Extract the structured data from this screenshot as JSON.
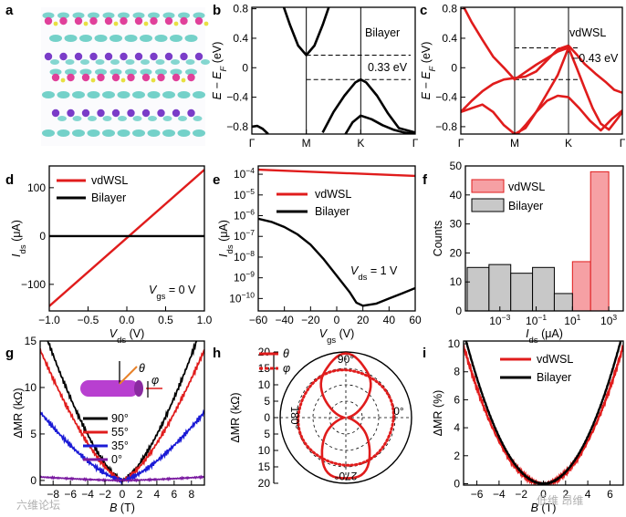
{
  "figure": {
    "panel_labels": [
      "a",
      "b",
      "c",
      "d",
      "e",
      "f",
      "g",
      "h",
      "i"
    ],
    "watermarks": [
      "六维论坛",
      "低维 昂维"
    ]
  },
  "chart_data": [
    {
      "panel": "a",
      "type": "other",
      "description_shown": "atomic structure with charge-density lobes",
      "colors": {
        "lobe": "#5cc9c0",
        "atom_pink": "#e0409a",
        "atom_purple": "#7a3cc8",
        "atom_yellow": "#e8e040"
      }
    },
    {
      "panel": "b",
      "type": "line",
      "ylabel_main": "E − E",
      "ylabel_sub": "F",
      "ylabel_unit": " (eV)",
      "ylim": [
        -0.9,
        0.82
      ],
      "y_ticks": [
        -0.8,
        -0.4,
        0,
        0.4,
        0.8
      ],
      "y_tick_labels": [
        "−0.8",
        "−0.4",
        "0",
        "0.4",
        "0.8"
      ],
      "x_ticks": [
        0,
        1,
        2,
        3
      ],
      "x_tick_labels": [
        "Γ",
        "M",
        "K",
        "Γ"
      ],
      "legend": "Bilayer",
      "annotation": "0.33 eV",
      "dashed_levels": [
        0.17,
        -0.16
      ],
      "color": "#000000",
      "bands": [
        {
          "x": [
            0.55,
            0.7,
            0.85,
            1.0,
            1.15,
            1.3,
            1.45
          ],
          "y": [
            0.9,
            0.58,
            0.3,
            0.17,
            0.3,
            0.58,
            0.9
          ]
        },
        {
          "x": [
            1.3,
            1.5,
            1.7,
            1.9,
            2.0,
            2.1,
            2.3,
            2.5,
            2.7,
            3.0
          ],
          "y": [
            -0.88,
            -0.6,
            -0.38,
            -0.2,
            -0.16,
            -0.2,
            -0.38,
            -0.62,
            -0.82,
            -0.88
          ]
        },
        {
          "x": [
            1.72,
            1.85,
            2.0,
            2.2,
            2.4,
            2.6,
            2.8,
            3.0
          ],
          "y": [
            -0.9,
            -0.74,
            -0.65,
            -0.7,
            -0.78,
            -0.84,
            -0.88,
            -0.9
          ]
        },
        {
          "x": [
            0.0,
            0.1,
            0.2,
            0.3
          ],
          "y": [
            -0.8,
            -0.79,
            -0.83,
            -0.9
          ]
        }
      ]
    },
    {
      "panel": "c",
      "type": "line",
      "ylabel_main": "E − E",
      "ylabel_sub": "F",
      "ylabel_unit": " (eV)",
      "ylim": [
        -0.9,
        0.82
      ],
      "y_ticks": [
        -0.8,
        -0.4,
        0,
        0.4,
        0.8
      ],
      "y_tick_labels": [
        "−0.8",
        "−0.4",
        "0",
        "0.4",
        "0.8"
      ],
      "x_ticks": [
        0,
        1,
        2,
        3
      ],
      "x_tick_labels": [
        "Γ",
        "M",
        "K",
        "Γ"
      ],
      "legend": "vdWSL",
      "annotation": "−0.43 eV",
      "dashed_levels": [
        0.27,
        -0.16
      ],
      "color": "#e01c1c",
      "bands": [
        {
          "x": [
            0.0,
            0.2,
            0.4,
            0.6,
            0.8,
            1.0,
            1.2,
            1.4,
            1.6,
            1.8,
            2.0
          ],
          "y": [
            0.9,
            0.62,
            0.38,
            0.15,
            0.0,
            -0.16,
            -0.06,
            0.04,
            0.13,
            0.22,
            0.27
          ]
        },
        {
          "x": [
            0.0,
            0.2,
            0.4,
            0.6,
            0.8,
            1.0,
            1.2,
            1.4,
            1.6,
            1.8,
            2.0
          ],
          "y": [
            -0.6,
            -0.45,
            -0.32,
            -0.22,
            -0.16,
            -0.14,
            -0.12,
            -0.05,
            0.1,
            0.25,
            0.3
          ]
        },
        {
          "x": [
            2.0,
            2.15,
            2.3,
            2.5,
            2.7,
            2.85,
            3.0
          ],
          "y": [
            0.3,
            0.18,
            0.05,
            -0.08,
            -0.2,
            -0.3,
            -0.34
          ]
        },
        {
          "x": [
            0.0,
            0.2,
            0.4,
            0.6,
            0.8,
            1.0,
            1.2,
            1.4,
            1.6,
            1.8,
            2.0
          ],
          "y": [
            -0.6,
            -0.55,
            -0.5,
            -0.6,
            -0.78,
            -0.9,
            -0.82,
            -0.6,
            -0.35,
            -0.1,
            0.27
          ]
        },
        {
          "x": [
            2.0,
            2.15,
            2.3,
            2.45,
            2.6,
            2.75,
            2.9,
            3.0
          ],
          "y": [
            0.27,
            0.0,
            -0.28,
            -0.55,
            -0.76,
            -0.84,
            -0.7,
            -0.6
          ]
        },
        {
          "x": [
            1.05,
            1.2,
            1.4,
            1.6,
            1.8,
            2.0
          ],
          "y": [
            -0.9,
            -0.78,
            -0.6,
            -0.45,
            -0.38,
            -0.4
          ]
        },
        {
          "x": [
            2.0,
            2.2,
            2.4,
            2.6,
            2.8,
            3.0
          ],
          "y": [
            -0.4,
            -0.55,
            -0.72,
            -0.85,
            -0.7,
            -0.58
          ]
        }
      ]
    },
    {
      "panel": "d",
      "type": "line",
      "xlabel_main": "V",
      "xlabel_sub": "ds",
      "xlabel_unit": " (V)",
      "ylabel_main": "I",
      "ylabel_sub": "ds",
      "ylabel_unit": " (μA)",
      "xlim": [
        -1.0,
        1.0
      ],
      "ylim": [
        -155,
        145
      ],
      "x_ticks": [
        -1.0,
        -0.5,
        0.0,
        0.5,
        1.0
      ],
      "x_tick_labels": [
        "−1.0",
        "−0.5",
        "0.0",
        "0.5",
        "1.0"
      ],
      "y_ticks": [
        -100,
        0,
        100
      ],
      "y_tick_labels": [
        "−100",
        "0",
        "100"
      ],
      "annotation_main": "V",
      "annotation_sub": "gs",
      "annotation_rest": " = 0 V",
      "series": [
        {
          "name": "vdWSL",
          "color": "#e01c1c",
          "x": [
            -1.0,
            1.0
          ],
          "y": [
            -145,
            137
          ]
        },
        {
          "name": "Bilayer",
          "color": "#000000",
          "x": [
            -1.0,
            1.0
          ],
          "y": [
            0,
            0
          ]
        }
      ]
    },
    {
      "panel": "e",
      "type": "line",
      "xlabel_main": "V",
      "xlabel_sub": "gs",
      "xlabel_unit": " (V)",
      "ylabel_main": "I",
      "ylabel_sub": "ds",
      "ylabel_unit": " (μA)",
      "xlim": [
        -60,
        60
      ],
      "log_y": true,
      "ylim_exp": [
        -10.6,
        -3.6
      ],
      "x_ticks": [
        -60,
        -40,
        -20,
        0,
        20,
        40,
        60
      ],
      "x_tick_labels": [
        "−60",
        "−40",
        "−20",
        "0",
        "20",
        "40",
        "60"
      ],
      "y_tick_exps": [
        -10,
        -9,
        -8,
        -7,
        -6,
        -5,
        -4
      ],
      "y_tick_base": "10",
      "y_tick_exp_labels": [
        "−10",
        "−9",
        "−8",
        "−7",
        "−6",
        "−5",
        "−4"
      ],
      "annotation_main": "V",
      "annotation_sub": "ds",
      "annotation_rest": " = 1 V",
      "series": [
        {
          "name": "vdWSL",
          "color": "#e01c1c",
          "x": [
            -60,
            60
          ],
          "log10_y": [
            -3.78,
            -4.08
          ]
        },
        {
          "name": "Bilayer",
          "color": "#000000",
          "x": [
            -60,
            -50,
            -40,
            -30,
            -20,
            -10,
            0,
            10,
            15,
            20,
            30,
            40,
            50,
            60
          ],
          "log10_y": [
            -6.15,
            -6.3,
            -6.55,
            -6.9,
            -7.4,
            -8.1,
            -8.9,
            -9.7,
            -10.2,
            -10.35,
            -10.25,
            -10.0,
            -9.75,
            -9.5
          ]
        }
      ]
    },
    {
      "panel": "f",
      "type": "bar",
      "xlabel_main": "I",
      "xlabel_sub": "ds",
      "xlabel_unit": " (μA)",
      "ylabel": "Counts",
      "ylim": [
        0,
        50
      ],
      "y_ticks": [
        0,
        10,
        20,
        30,
        40,
        50
      ],
      "y_tick_labels": [
        "0",
        "10",
        "20",
        "30",
        "40",
        "50"
      ],
      "log_x": true,
      "xlim_exp": [
        -4.9,
        3.8
      ],
      "x_tick_exps": [
        -3,
        -1,
        1,
        3
      ],
      "x_tick_base": "10",
      "x_tick_exp_labels": [
        "−3",
        "−1",
        "1",
        "3"
      ],
      "series": [
        {
          "name": "vdWSL",
          "color": "#f6a0a4",
          "edge": "#e01c1c",
          "bins_exp": [
            [
              1,
              2
            ],
            [
              2,
              3
            ]
          ],
          "values": [
            17,
            48
          ]
        },
        {
          "name": "Bilayer",
          "color": "#c8c8c8",
          "edge": "#000000",
          "bins_exp": [
            [
              -4.8,
              -3.6
            ],
            [
              -3.6,
              -2.4
            ],
            [
              -2.4,
              -1.2
            ],
            [
              -1.2,
              0
            ],
            [
              0,
              1
            ]
          ],
          "values": [
            15,
            16,
            13,
            15,
            6
          ]
        }
      ]
    },
    {
      "panel": "g",
      "type": "line",
      "xlabel_main": "B",
      "xlabel_unit": " (T)",
      "ylabel_main": "ΔMR",
      "ylabel_unit": " (kΩ)",
      "xlim": [
        -9.5,
        9.5
      ],
      "ylim": [
        -0.5,
        15
      ],
      "x_ticks": [
        -8,
        -6,
        -4,
        -2,
        0,
        2,
        4,
        6,
        8
      ],
      "x_tick_labels": [
        "−8",
        "−6",
        "−4",
        "−2",
        "0",
        "2",
        "4",
        "6",
        "8"
      ],
      "y_ticks": [
        0,
        5,
        10,
        15
      ],
      "y_tick_labels": [
        "0",
        "5",
        "10",
        "15"
      ],
      "angle_labels": [
        "θ",
        "φ"
      ],
      "series": [
        {
          "name": "90°",
          "color": "#000000",
          "peak_at_9T": 16.0
        },
        {
          "name": "55°",
          "color": "#e01c1c",
          "peak_at_9T": 13.0
        },
        {
          "name": "35°",
          "color": "#1b1bd6",
          "peak_at_9T": 6.8
        },
        {
          "name": "0°",
          "color": "#7a1aa0",
          "peak_at_9T": 0.35
        }
      ]
    },
    {
      "panel": "h",
      "type": "polar",
      "ylabel_main": "ΔMR",
      "ylabel_unit": " (kΩ)",
      "y_ticks": [
        0,
        5,
        10,
        15,
        20
      ],
      "y_tick_labels": [
        "0",
        "5",
        "10",
        "15",
        "20"
      ],
      "y_ticks_upper": [
        "20",
        "15",
        "10",
        "5",
        "0"
      ],
      "rmax": 20,
      "angle_labels": [
        "90°",
        "0°",
        "180°",
        "270°"
      ],
      "series": [
        {
          "name": "θ",
          "color": "#e01c1c",
          "style": "solid",
          "amplitude": 18.5,
          "offset": 0.5,
          "shape": "sin_squared"
        },
        {
          "name": "φ",
          "color": "#e01c1c",
          "style": "dotted",
          "amplitude": 14.5,
          "offset": 0.2,
          "shape": "circle"
        }
      ]
    },
    {
      "panel": "i",
      "type": "line",
      "xlabel_main": "B",
      "xlabel_unit": " (T)",
      "ylabel_main": "ΔMR",
      "ylabel_unit": " (%)",
      "xlim": [
        -7.2,
        7.2
      ],
      "ylim": [
        -0.1,
        10.2
      ],
      "x_ticks": [
        -6,
        -4,
        -2,
        0,
        2,
        4,
        6
      ],
      "x_tick_labels": [
        "−6",
        "−4",
        "−2",
        "0",
        "2",
        "4",
        "6"
      ],
      "y_ticks": [
        0,
        2,
        4,
        6,
        8,
        10
      ],
      "y_tick_labels": [
        "0",
        "2",
        "4",
        "6",
        "8",
        "10"
      ],
      "series": [
        {
          "name": "vdWSL",
          "color": "#e01c1c",
          "a": 0.19,
          "b": 0.0
        },
        {
          "name": "Bilayer",
          "color": "#000000",
          "a": 0.21,
          "b": 0.0
        }
      ]
    }
  ]
}
